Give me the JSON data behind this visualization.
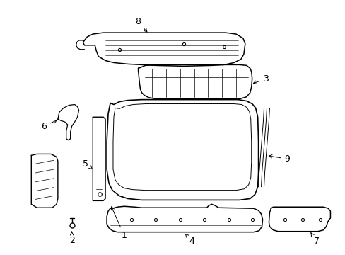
{
  "bg_color": "#ffffff",
  "line_color": "#000000",
  "label_fontsize": 9,
  "fig_width": 4.89,
  "fig_height": 3.6,
  "dpi": 100
}
